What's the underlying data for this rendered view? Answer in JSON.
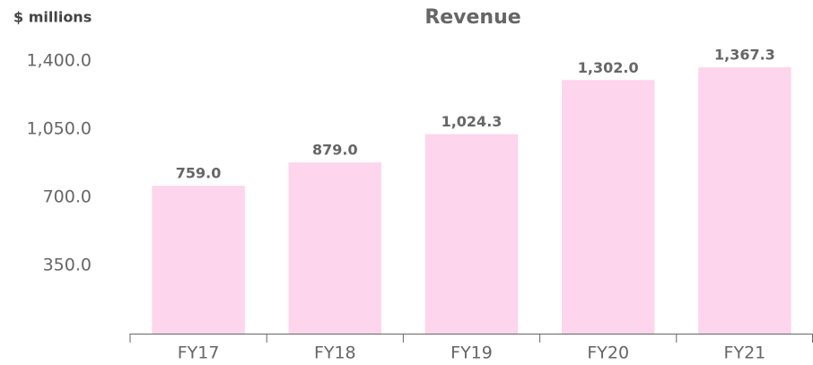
{
  "chart_data": {
    "type": "bar",
    "title": "Revenue",
    "y_label": "$ millions",
    "categories": [
      "FY17",
      "FY18",
      "FY19",
      "FY20",
      "FY21"
    ],
    "values": [
      759.0,
      879.0,
      1024.3,
      1302.0,
      1367.3
    ],
    "value_labels": [
      "759.0",
      "879.0",
      "1,024.3",
      "1,302.0",
      "1,367.3"
    ],
    "color": "#fdd5ec",
    "ylim": [
      0,
      1400
    ],
    "yticks": [
      {
        "value": 350,
        "label": "350.0"
      },
      {
        "value": 700,
        "label": "700.0"
      },
      {
        "value": 1050,
        "label": "1,050.0"
      },
      {
        "value": 1400,
        "label": "1,400.0"
      }
    ],
    "grid": false
  }
}
